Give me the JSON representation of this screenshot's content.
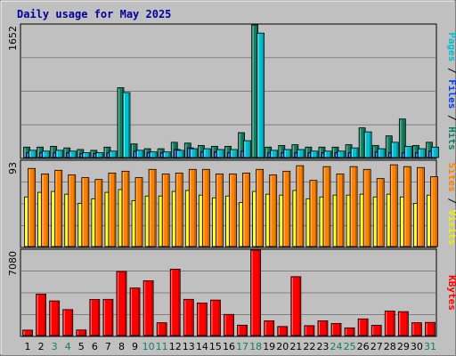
{
  "chart_data": {
    "type": "bar",
    "title": "Daily usage for May 2025",
    "categories": [
      "1",
      "2",
      "3",
      "4",
      "5",
      "6",
      "7",
      "8",
      "9",
      "10",
      "11",
      "12",
      "13",
      "14",
      "15",
      "16",
      "17",
      "18",
      "19",
      "20",
      "21",
      "22",
      "23",
      "24",
      "25",
      "26",
      "27",
      "28",
      "29",
      "30",
      "31"
    ],
    "weekend_days": [
      "3",
      "4",
      "10",
      "11",
      "17",
      "18",
      "24",
      "25",
      "31"
    ],
    "panels": [
      {
        "name": "hits-files-pages",
        "y_max_label": "1652",
        "ylim": [
          0,
          1652
        ],
        "ylabel_parts": [
          {
            "text": "Pages",
            "color": "#00c0d0"
          },
          {
            "text": " / ",
            "color": "#000000"
          },
          {
            "text": "Files",
            "color": "#0040f0"
          },
          {
            "text": " / ",
            "color": "#000000"
          },
          {
            "text": "Hits",
            "color": "#108060"
          }
        ],
        "series": [
          {
            "name": "Hits",
            "color": "#108060",
            "values": [
              130,
              130,
              140,
              120,
              100,
              90,
              130,
              870,
              170,
              110,
              110,
              190,
              180,
              150,
              140,
              140,
              310,
              1652,
              130,
              150,
              160,
              130,
              130,
              130,
              160,
              370,
              150,
              270,
              480,
              150,
              190
            ]
          },
          {
            "name": "Files",
            "color": "#0040f0",
            "values": [
              60,
              60,
              60,
              60,
              50,
              50,
              60,
              0,
              80,
              60,
              60,
              100,
              120,
              70,
              70,
              60,
              80,
              0,
              60,
              60,
              60,
              60,
              60,
              60,
              60,
              0,
              70,
              60,
              60,
              60,
              80
            ]
          },
          {
            "name": "Pages",
            "color": "#00c0d0",
            "values": [
              90,
              80,
              90,
              80,
              60,
              60,
              80,
              810,
              90,
              70,
              70,
              90,
              110,
              110,
              100,
              100,
              210,
              1550,
              90,
              100,
              100,
              80,
              80,
              80,
              120,
              320,
              110,
              190,
              140,
              110,
              130
            ]
          }
        ]
      },
      {
        "name": "visits-sites",
        "y_max_label": "93",
        "ylim": [
          0,
          93
        ],
        "ylabel_parts": [
          {
            "text": "Sites",
            "color": "#ff8000"
          },
          {
            "text": " / ",
            "color": "#000000"
          },
          {
            "text": "Visits",
            "color": "#f0f000"
          }
        ],
        "series": [
          {
            "name": "Visits",
            "color": "#ffff00",
            "values": [
              54,
              59,
              60,
              57,
              47,
              52,
              59,
              62,
              50,
              55,
              55,
              60,
              61,
              56,
              53,
              55,
              48,
              60,
              57,
              56,
              61,
              52,
              54,
              56,
              56,
              57,
              54,
              57,
              54,
              47,
              56
            ]
          },
          {
            "name": "Sites",
            "color": "#ff8000",
            "values": [
              85,
              79,
              83,
              78,
              75,
              73,
              80,
              82,
              75,
              84,
              79,
              80,
              84,
              84,
              79,
              79,
              80,
              84,
              78,
              82,
              88,
              72,
              87,
              79,
              87,
              84,
              74,
              89,
              87,
              86,
              76
            ]
          }
        ]
      },
      {
        "name": "kbytes",
        "y_max_label": "7080",
        "ylim": [
          0,
          7080
        ],
        "ylabel_parts": [
          {
            "text": "KBytes",
            "color": "#ff0000"
          }
        ],
        "series": [
          {
            "name": "KBytes",
            "color": "#ff0000",
            "values": [
              450,
              3430,
              2870,
              2150,
              460,
              2990,
              3000,
              5310,
              3940,
              4540,
              1060,
              5500,
              3000,
              2700,
              2940,
              1750,
              860,
              7080,
              1220,
              750,
              4880,
              820,
              1220,
              1000,
              640,
              1380,
              850,
              2030,
              1980,
              1060,
              1090
            ]
          }
        ]
      }
    ]
  }
}
